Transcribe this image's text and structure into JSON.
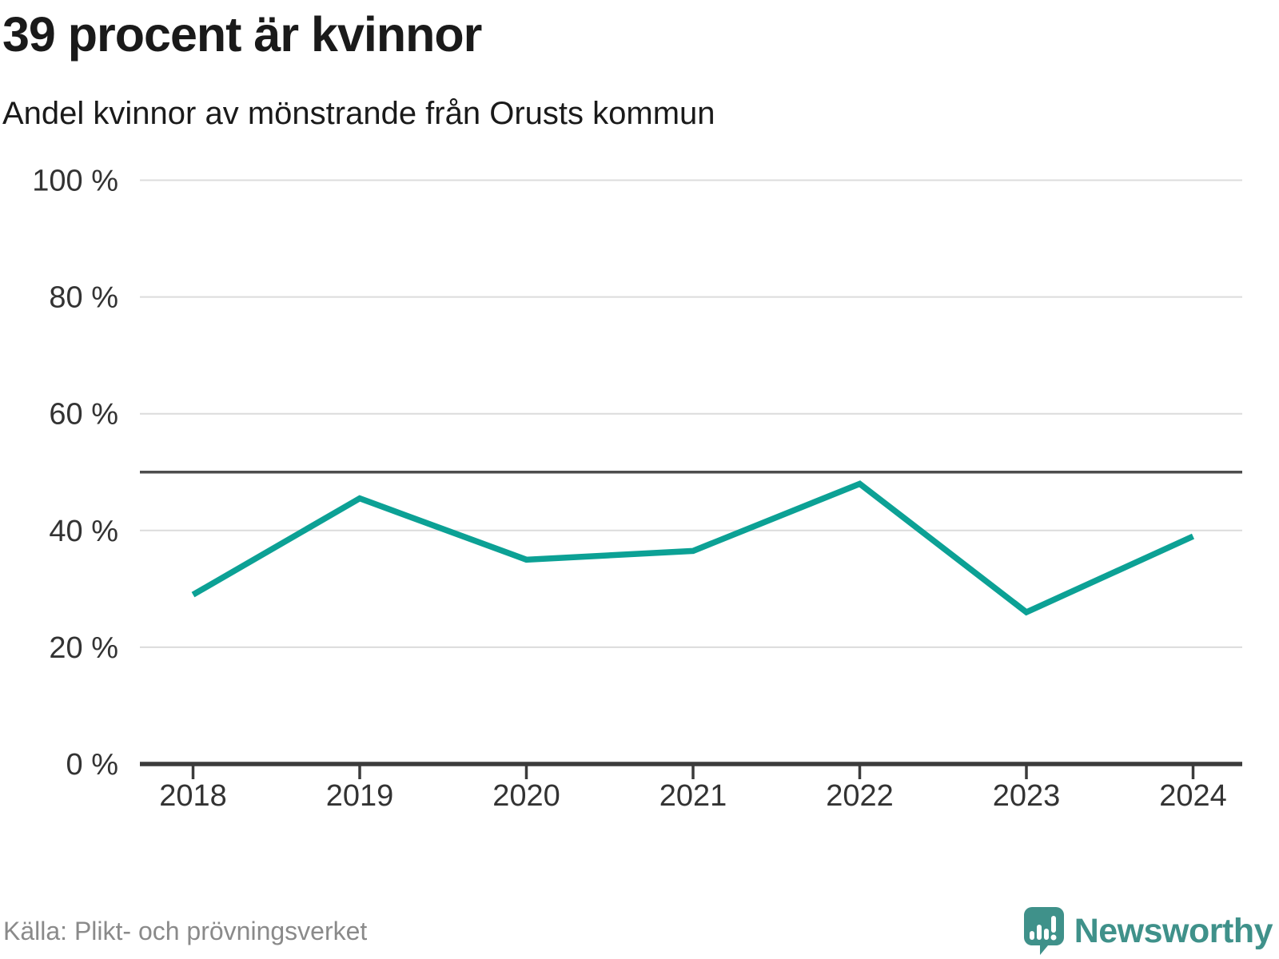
{
  "header": {
    "title": "39 procent är kvinnor",
    "subtitle": "Andel kvinnor av mönstrande från Orusts kommun"
  },
  "footer": {
    "source": "Källa: Plikt- och prövningsverket",
    "brand": "Newsworthy"
  },
  "colors": {
    "line": "#0ca195",
    "reference_line": "#4d4d4d",
    "gridline": "#dcdcdc",
    "axis": "#3b3b3b",
    "tick_label": "#333333",
    "title_text": "#1a1a1a",
    "source_text": "#8a8a8a",
    "brand_teal": "#3f918a"
  },
  "chart_data": {
    "type": "line",
    "title": "39 procent är kvinnor",
    "subtitle": "Andel kvinnor av mönstrande från Orusts kommun",
    "x": [
      2018,
      2019,
      2020,
      2021,
      2022,
      2023,
      2024
    ],
    "series": [
      {
        "name": "Andel kvinnor av mönstrande",
        "values": [
          29,
          45.5,
          35,
          36.5,
          48,
          26,
          39
        ]
      }
    ],
    "xlabel": "",
    "ylabel": "",
    "ylim": [
      0,
      100
    ],
    "yticks": [
      0,
      20,
      40,
      60,
      80,
      100
    ],
    "ytick_format": "{v} %",
    "reference_line": 50,
    "grid": "horizontal",
    "legend": "none"
  }
}
